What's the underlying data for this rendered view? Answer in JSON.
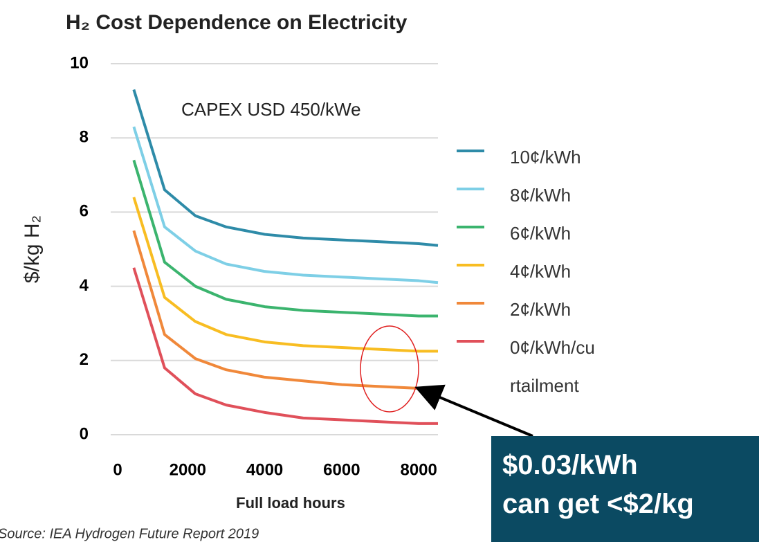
{
  "chart_data": {
    "type": "line",
    "title": "H₂ Cost Dependence on Electricity",
    "subtitle": "CAPEX USD 450/kWe",
    "x_label": "Full load hours",
    "y_label": "$/kg H₂",
    "x": [
      600,
      1400,
      2200,
      3000,
      4000,
      5000,
      6000,
      7000,
      8000,
      8500
    ],
    "series": [
      {
        "name": "10¢/kWh",
        "color": "#2e8ba8",
        "values": [
          9.3,
          6.6,
          5.9,
          5.6,
          5.4,
          5.3,
          5.25,
          5.2,
          5.15,
          5.1
        ]
      },
      {
        "name": "8¢/kWh",
        "color": "#7ecfe6",
        "values": [
          8.3,
          5.6,
          4.95,
          4.6,
          4.4,
          4.3,
          4.25,
          4.2,
          4.15,
          4.1
        ]
      },
      {
        "name": "6¢/kWh",
        "color": "#3bb46e",
        "values": [
          7.4,
          4.65,
          4.0,
          3.65,
          3.45,
          3.35,
          3.3,
          3.25,
          3.2,
          3.2
        ]
      },
      {
        "name": "4¢/kWh",
        "color": "#f8bd22",
        "values": [
          6.4,
          3.7,
          3.05,
          2.7,
          2.5,
          2.4,
          2.35,
          2.3,
          2.25,
          2.25
        ]
      },
      {
        "name": "2¢/kWh",
        "color": "#f0883a",
        "values": [
          5.5,
          2.7,
          2.05,
          1.75,
          1.55,
          1.45,
          1.35,
          1.3,
          1.25,
          1.25
        ]
      },
      {
        "name": "0¢/kWh/curtailment",
        "color": "#e0505a",
        "values": [
          4.5,
          1.8,
          1.1,
          0.8,
          0.6,
          0.45,
          0.4,
          0.35,
          0.3,
          0.3
        ]
      }
    ],
    "xlim": [
      0,
      8500
    ],
    "ylim": [
      0,
      10
    ],
    "xticks": [
      0,
      2000,
      4000,
      6000,
      8000
    ],
    "yticks": [
      0,
      2,
      4,
      6,
      8,
      10
    ],
    "grid": true,
    "legend": "right",
    "annotation": [
      "$0.03/kWh",
      "can get <$2/kg"
    ],
    "source": "Source: IEA Hydrogen Future Report 2019"
  }
}
